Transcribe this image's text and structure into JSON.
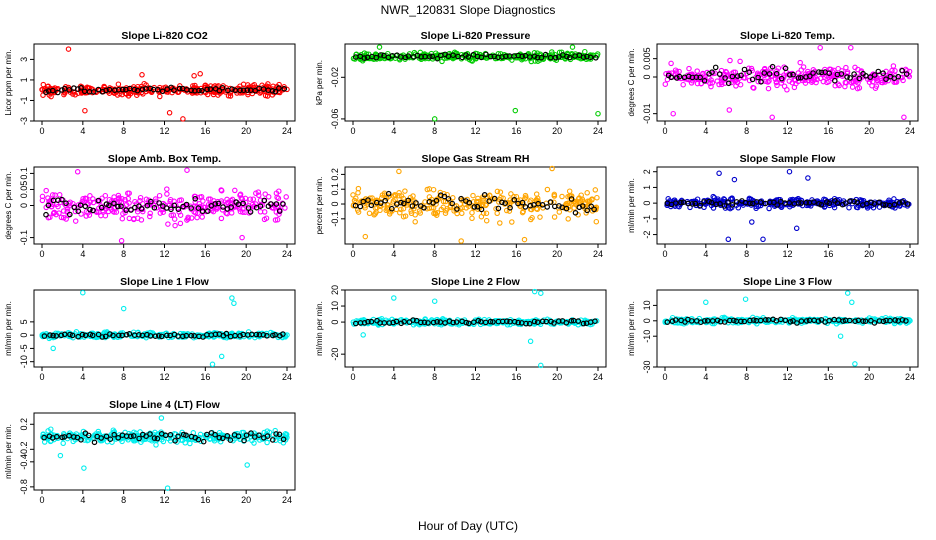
{
  "figure": {
    "title": "NWR_120831  Slope Diagnostics",
    "xlabel": "Hour of Day (UTC)"
  },
  "chart_data": [
    {
      "type": "scatter",
      "title": "Slope Li-820 CO2",
      "ylabel": "Licor ppm per min.",
      "color": "#ff0000",
      "xlim": [
        0,
        24
      ],
      "xticks": [
        0,
        4,
        8,
        12,
        16,
        20,
        24
      ],
      "ylim": [
        -3,
        4.5
      ],
      "yticks": [
        -3,
        -1,
        1,
        3
      ],
      "band_center": 0,
      "band_width": 0.45,
      "black_width": 0.25,
      "outliers": [
        {
          "x": 2.6,
          "y": 4.0
        },
        {
          "x": 13.8,
          "y": -2.8
        },
        {
          "x": 12.5,
          "y": -2.2
        },
        {
          "x": 4.2,
          "y": -2.0
        },
        {
          "x": 15.5,
          "y": 1.6
        },
        {
          "x": 14.9,
          "y": 1.4
        },
        {
          "x": 9.8,
          "y": 1.5
        }
      ]
    },
    {
      "type": "scatter",
      "title": "Slope Li-820 Pressure",
      "ylabel": "kPa per min.",
      "color": "#00cc00",
      "xlim": [
        0,
        24
      ],
      "xticks": [
        0,
        4,
        8,
        12,
        16,
        20,
        24
      ],
      "ylim": [
        -0.062,
        0.012
      ],
      "yticks": [
        -0.06,
        -0.02
      ],
      "band_center": 0.0,
      "band_width": 0.0035,
      "black_width": 0.002,
      "outliers": [
        {
          "x": 8.0,
          "y": -0.06
        },
        {
          "x": 15.9,
          "y": -0.052
        },
        {
          "x": 24.0,
          "y": -0.055
        },
        {
          "x": 2.6,
          "y": 0.009
        },
        {
          "x": 21.5,
          "y": 0.009
        }
      ]
    },
    {
      "type": "scatter",
      "title": "Slope Li-820 Temp.",
      "ylabel": "degrees C per min.",
      "color": "#ff00ff",
      "xlim": [
        0,
        24
      ],
      "xticks": [
        0,
        4,
        8,
        12,
        16,
        20,
        24
      ],
      "ylim": [
        -0.012,
        0.009
      ],
      "yticks": [
        -0.01,
        0.0,
        0.005
      ],
      "band_center": 0.0,
      "band_width": 0.0028,
      "black_width": 0.002,
      "outliers": [
        {
          "x": 0.8,
          "y": -0.01
        },
        {
          "x": 10.5,
          "y": -0.011
        },
        {
          "x": 15.2,
          "y": 0.008
        },
        {
          "x": 23.4,
          "y": -0.011
        },
        {
          "x": 6.3,
          "y": -0.009
        },
        {
          "x": 18.2,
          "y": 0.008
        }
      ]
    },
    {
      "type": "scatter",
      "title": "Slope Amb. Box Temp.",
      "ylabel": "degrees C per min.",
      "color": "#ff00ff",
      "xlim": [
        0,
        24
      ],
      "xticks": [
        0,
        4,
        8,
        12,
        16,
        20,
        24
      ],
      "ylim": [
        -0.12,
        0.12
      ],
      "yticks": [
        -0.1,
        0.0,
        0.05,
        0.1
      ],
      "band_center": 0.0,
      "band_width": 0.045,
      "black_width": 0.025,
      "outliers": [
        {
          "x": 7.8,
          "y": -0.11
        },
        {
          "x": 14.2,
          "y": 0.11
        },
        {
          "x": 3.5,
          "y": 0.105
        },
        {
          "x": 19.6,
          "y": -0.1
        }
      ]
    },
    {
      "type": "scatter",
      "title": "Slope Gas Stream RH",
      "ylabel": "percent per min.",
      "color": "#ffa500",
      "xlim": [
        0,
        24
      ],
      "xticks": [
        0,
        4,
        8,
        12,
        16,
        20,
        24
      ],
      "ylim": [
        -0.27,
        0.25
      ],
      "yticks": [
        -0.1,
        0.0,
        0.1,
        0.2
      ],
      "band_center": 0.0,
      "band_width": 0.09,
      "black_width": 0.05,
      "outliers": [
        {
          "x": 4.5,
          "y": 0.22
        },
        {
          "x": 10.6,
          "y": -0.25
        },
        {
          "x": 16.8,
          "y": -0.24
        },
        {
          "x": 19.5,
          "y": 0.24
        },
        {
          "x": 1.2,
          "y": -0.22
        }
      ]
    },
    {
      "type": "scatter",
      "title": "Slope Sample Flow",
      "ylabel": "ml/min per min.",
      "color": "#0000cc",
      "xlim": [
        0,
        24
      ],
      "xticks": [
        0,
        4,
        8,
        12,
        16,
        20,
        24
      ],
      "ylim": [
        -2.6,
        2.3
      ],
      "yticks": [
        -2,
        -1,
        0,
        1,
        2
      ],
      "band_center": 0.0,
      "band_width": 0.3,
      "black_width": 0.15,
      "outliers": [
        {
          "x": 5.3,
          "y": 1.9
        },
        {
          "x": 6.2,
          "y": -2.3
        },
        {
          "x": 9.6,
          "y": -2.3
        },
        {
          "x": 12.2,
          "y": 2.0
        },
        {
          "x": 12.9,
          "y": -1.6
        },
        {
          "x": 6.8,
          "y": 1.5
        },
        {
          "x": 14.0,
          "y": 1.6
        },
        {
          "x": 8.5,
          "y": -1.2
        }
      ]
    },
    {
      "type": "scatter",
      "title": "Slope Line 1 Flow",
      "ylabel": "ml/min per min.",
      "color": "#00eeee",
      "xlim": [
        0,
        24
      ],
      "xticks": [
        0,
        4,
        8,
        12,
        16,
        20,
        24
      ],
      "ylim": [
        -12,
        17
      ],
      "yticks": [
        -10,
        -5,
        0,
        5
      ],
      "band_center": 0.0,
      "band_width": 1.0,
      "black_width": 0.6,
      "outliers": [
        {
          "x": 4.0,
          "y": 16
        },
        {
          "x": 8.0,
          "y": 10
        },
        {
          "x": 18.6,
          "y": 14
        },
        {
          "x": 18.8,
          "y": 12
        },
        {
          "x": 1.1,
          "y": -5
        },
        {
          "x": 17.6,
          "y": -8
        },
        {
          "x": 16.7,
          "y": -11
        }
      ]
    },
    {
      "type": "scatter",
      "title": "Slope Line 2 Flow",
      "ylabel": "ml/min per min.",
      "color": "#00eeee",
      "xlim": [
        0,
        24
      ],
      "xticks": [
        0,
        4,
        8,
        12,
        16,
        20,
        24
      ],
      "ylim": [
        -28,
        20
      ],
      "yticks": [
        -20,
        0,
        10,
        20
      ],
      "band_center": 0.0,
      "band_width": 1.6,
      "black_width": 1.0,
      "outliers": [
        {
          "x": 4.0,
          "y": 15
        },
        {
          "x": 8.0,
          "y": 13
        },
        {
          "x": 17.8,
          "y": 19
        },
        {
          "x": 18.4,
          "y": 18
        },
        {
          "x": 18.4,
          "y": -27
        },
        {
          "x": 17.4,
          "y": -12
        },
        {
          "x": 1.0,
          "y": -8
        }
      ]
    },
    {
      "type": "scatter",
      "title": "Slope Line 3 Flow",
      "ylabel": "ml/min per min.",
      "color": "#00eeee",
      "xlim": [
        0,
        24
      ],
      "xticks": [
        0,
        4,
        8,
        12,
        16,
        20,
        24
      ],
      "ylim": [
        -30,
        20
      ],
      "yticks": [
        -30,
        -10,
        0,
        10
      ],
      "band_center": 0.0,
      "band_width": 1.6,
      "black_width": 1.0,
      "outliers": [
        {
          "x": 4.0,
          "y": 12
        },
        {
          "x": 7.9,
          "y": 14
        },
        {
          "x": 17.9,
          "y": 18
        },
        {
          "x": 18.3,
          "y": 12
        },
        {
          "x": 18.6,
          "y": -28
        },
        {
          "x": 17.2,
          "y": -10
        }
      ]
    },
    {
      "type": "scatter",
      "title": "Slope Line 4 (LT) Flow",
      "ylabel": "ml/min per min.",
      "color": "#00eeee",
      "xlim": [
        0,
        24
      ],
      "xticks": [
        0,
        4,
        8,
        12,
        16,
        20,
        24
      ],
      "ylim": [
        -0.85,
        0.38
      ],
      "yticks": [
        -0.8,
        -0.4,
        -0.2,
        0.2
      ],
      "band_center": 0.0,
      "band_width": 0.09,
      "black_width": 0.06,
      "outliers": [
        {
          "x": 4.1,
          "y": -0.5
        },
        {
          "x": 12.3,
          "y": -0.82
        },
        {
          "x": 20.1,
          "y": -0.45
        },
        {
          "x": 1.8,
          "y": -0.3
        },
        {
          "x": 11.7,
          "y": 0.3
        }
      ]
    }
  ]
}
